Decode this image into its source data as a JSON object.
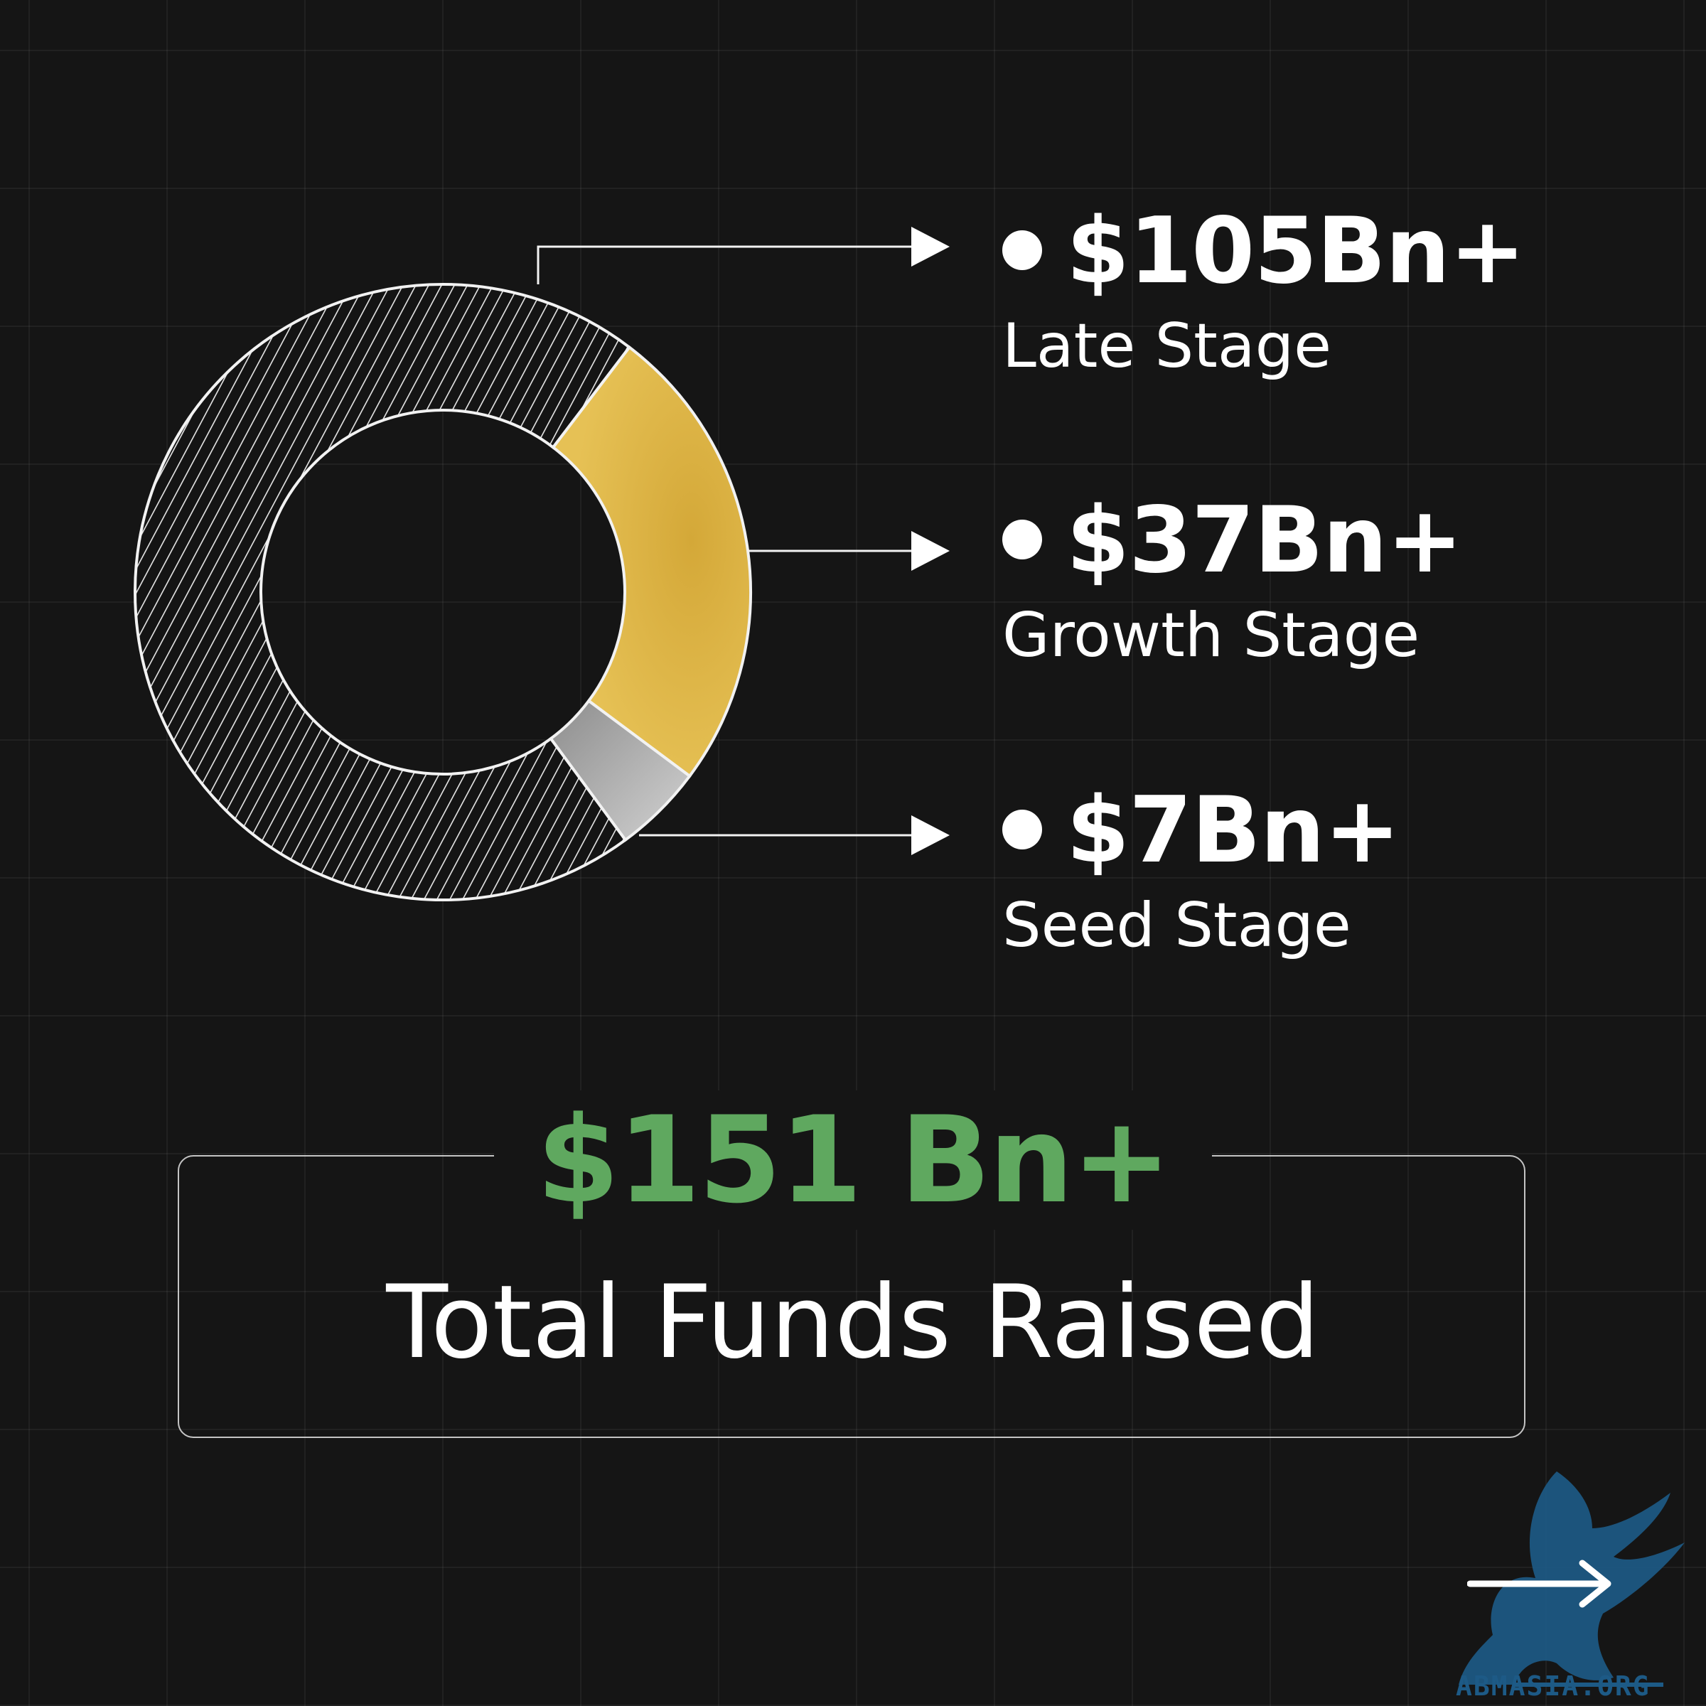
{
  "chart_data": {
    "type": "pie",
    "style": "donut",
    "categories": [
      "Late Stage",
      "Growth Stage",
      "Seed Stage"
    ],
    "values": [
      105,
      37,
      7
    ],
    "value_labels": [
      "$105Bn+",
      "$37Bn+",
      "$7Bn+"
    ],
    "colors": [
      "#e8e8e8",
      "#e6bd45",
      "#b9b9b9"
    ],
    "legend_position": "right"
  },
  "total": {
    "value": "$151 Bn+",
    "label": "Total Funds Raised",
    "color": "#5fa85f"
  },
  "brand": {
    "logo_icon": "griffin-icon",
    "watermark": "ABMASIA.ORG",
    "next_icon": "arrow-right-icon"
  },
  "colors": {
    "background": "#151515",
    "text": "#ffffff"
  }
}
